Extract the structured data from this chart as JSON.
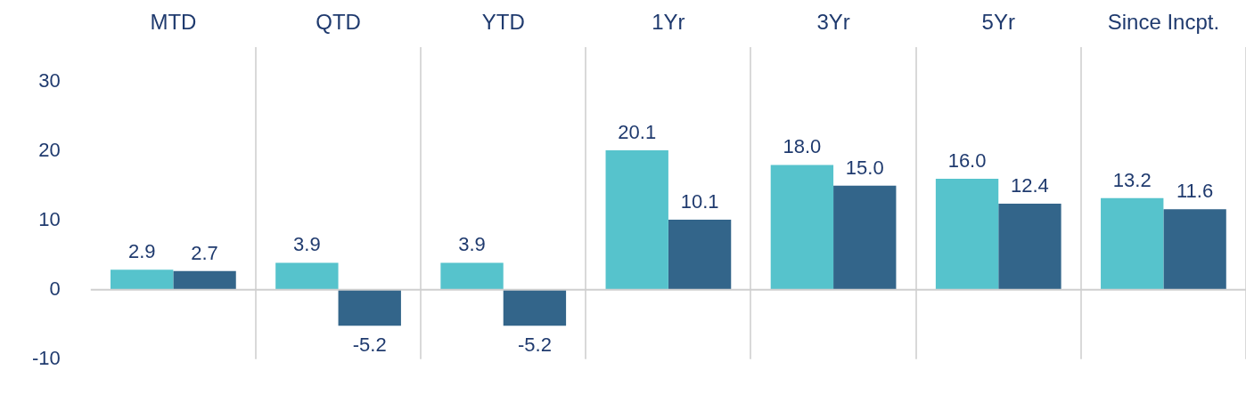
{
  "chart_data": {
    "type": "bar",
    "categories": [
      "MTD",
      "QTD",
      "YTD",
      "1Yr",
      "3Yr",
      "5Yr",
      "Since Incpt."
    ],
    "series": [
      {
        "color": "#56c3cc",
        "values": [
          2.9,
          3.9,
          3.9,
          20.1,
          18.0,
          16.0,
          13.2
        ]
      },
      {
        "color": "#33658a",
        "values": [
          2.7,
          -5.2,
          -5.2,
          10.1,
          15.0,
          12.4,
          11.6
        ]
      }
    ],
    "value_labels": [
      [
        "2.9",
        "3.9",
        "3.9",
        "20.1",
        "18.0",
        "16.0",
        "13.2"
      ],
      [
        "2.7",
        "-5.2",
        "-5.2",
        "10.1",
        "15.0",
        "12.4",
        "11.6"
      ]
    ],
    "ylim": [
      -10,
      35
    ],
    "yticks": [
      -10,
      0,
      10,
      20,
      30
    ],
    "grid": "x",
    "legend": false
  }
}
